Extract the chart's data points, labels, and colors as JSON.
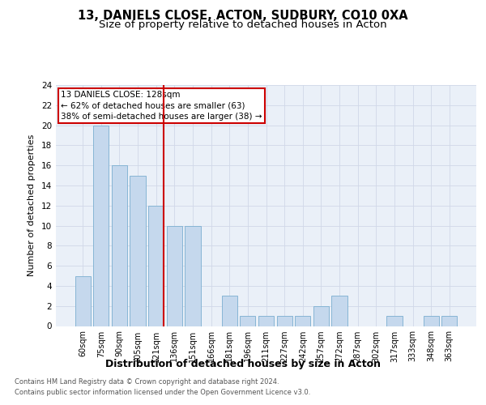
{
  "title_line1": "13, DANIELS CLOSE, ACTON, SUDBURY, CO10 0XA",
  "title_line2": "Size of property relative to detached houses in Acton",
  "xlabel": "Distribution of detached houses by size in Acton",
  "ylabel": "Number of detached properties",
  "categories": [
    "60sqm",
    "75sqm",
    "90sqm",
    "105sqm",
    "121sqm",
    "136sqm",
    "151sqm",
    "166sqm",
    "181sqm",
    "196sqm",
    "211sqm",
    "227sqm",
    "242sqm",
    "257sqm",
    "272sqm",
    "287sqm",
    "302sqm",
    "317sqm",
    "333sqm",
    "348sqm",
    "363sqm"
  ],
  "values": [
    5,
    20,
    16,
    15,
    12,
    10,
    10,
    0,
    3,
    1,
    1,
    1,
    1,
    2,
    3,
    0,
    0,
    1,
    0,
    1,
    1
  ],
  "bar_color": "#c5d8ed",
  "bar_edge_color": "#7aaed0",
  "vline_x_index": 4.4,
  "vline_color": "#cc0000",
  "annotation_text_line1": "13 DANIELS CLOSE: 128sqm",
  "annotation_text_line2": "← 62% of detached houses are smaller (63)",
  "annotation_text_line3": "38% of semi-detached houses are larger (38) →",
  "annotation_box_color": "#cc0000",
  "ylim": [
    0,
    24
  ],
  "yticks": [
    0,
    2,
    4,
    6,
    8,
    10,
    12,
    14,
    16,
    18,
    20,
    22,
    24
  ],
  "grid_color": "#d0d8e8",
  "bg_color": "#eaf0f8",
  "footer_line1": "Contains HM Land Registry data © Crown copyright and database right 2024.",
  "footer_line2": "Contains public sector information licensed under the Open Government Licence v3.0.",
  "title1_fontsize": 10.5,
  "title2_fontsize": 9.5,
  "ylabel_fontsize": 8,
  "xlabel_fontsize": 9,
  "tick_fontsize": 7,
  "footer_fontsize": 6,
  "bar_width": 0.85
}
